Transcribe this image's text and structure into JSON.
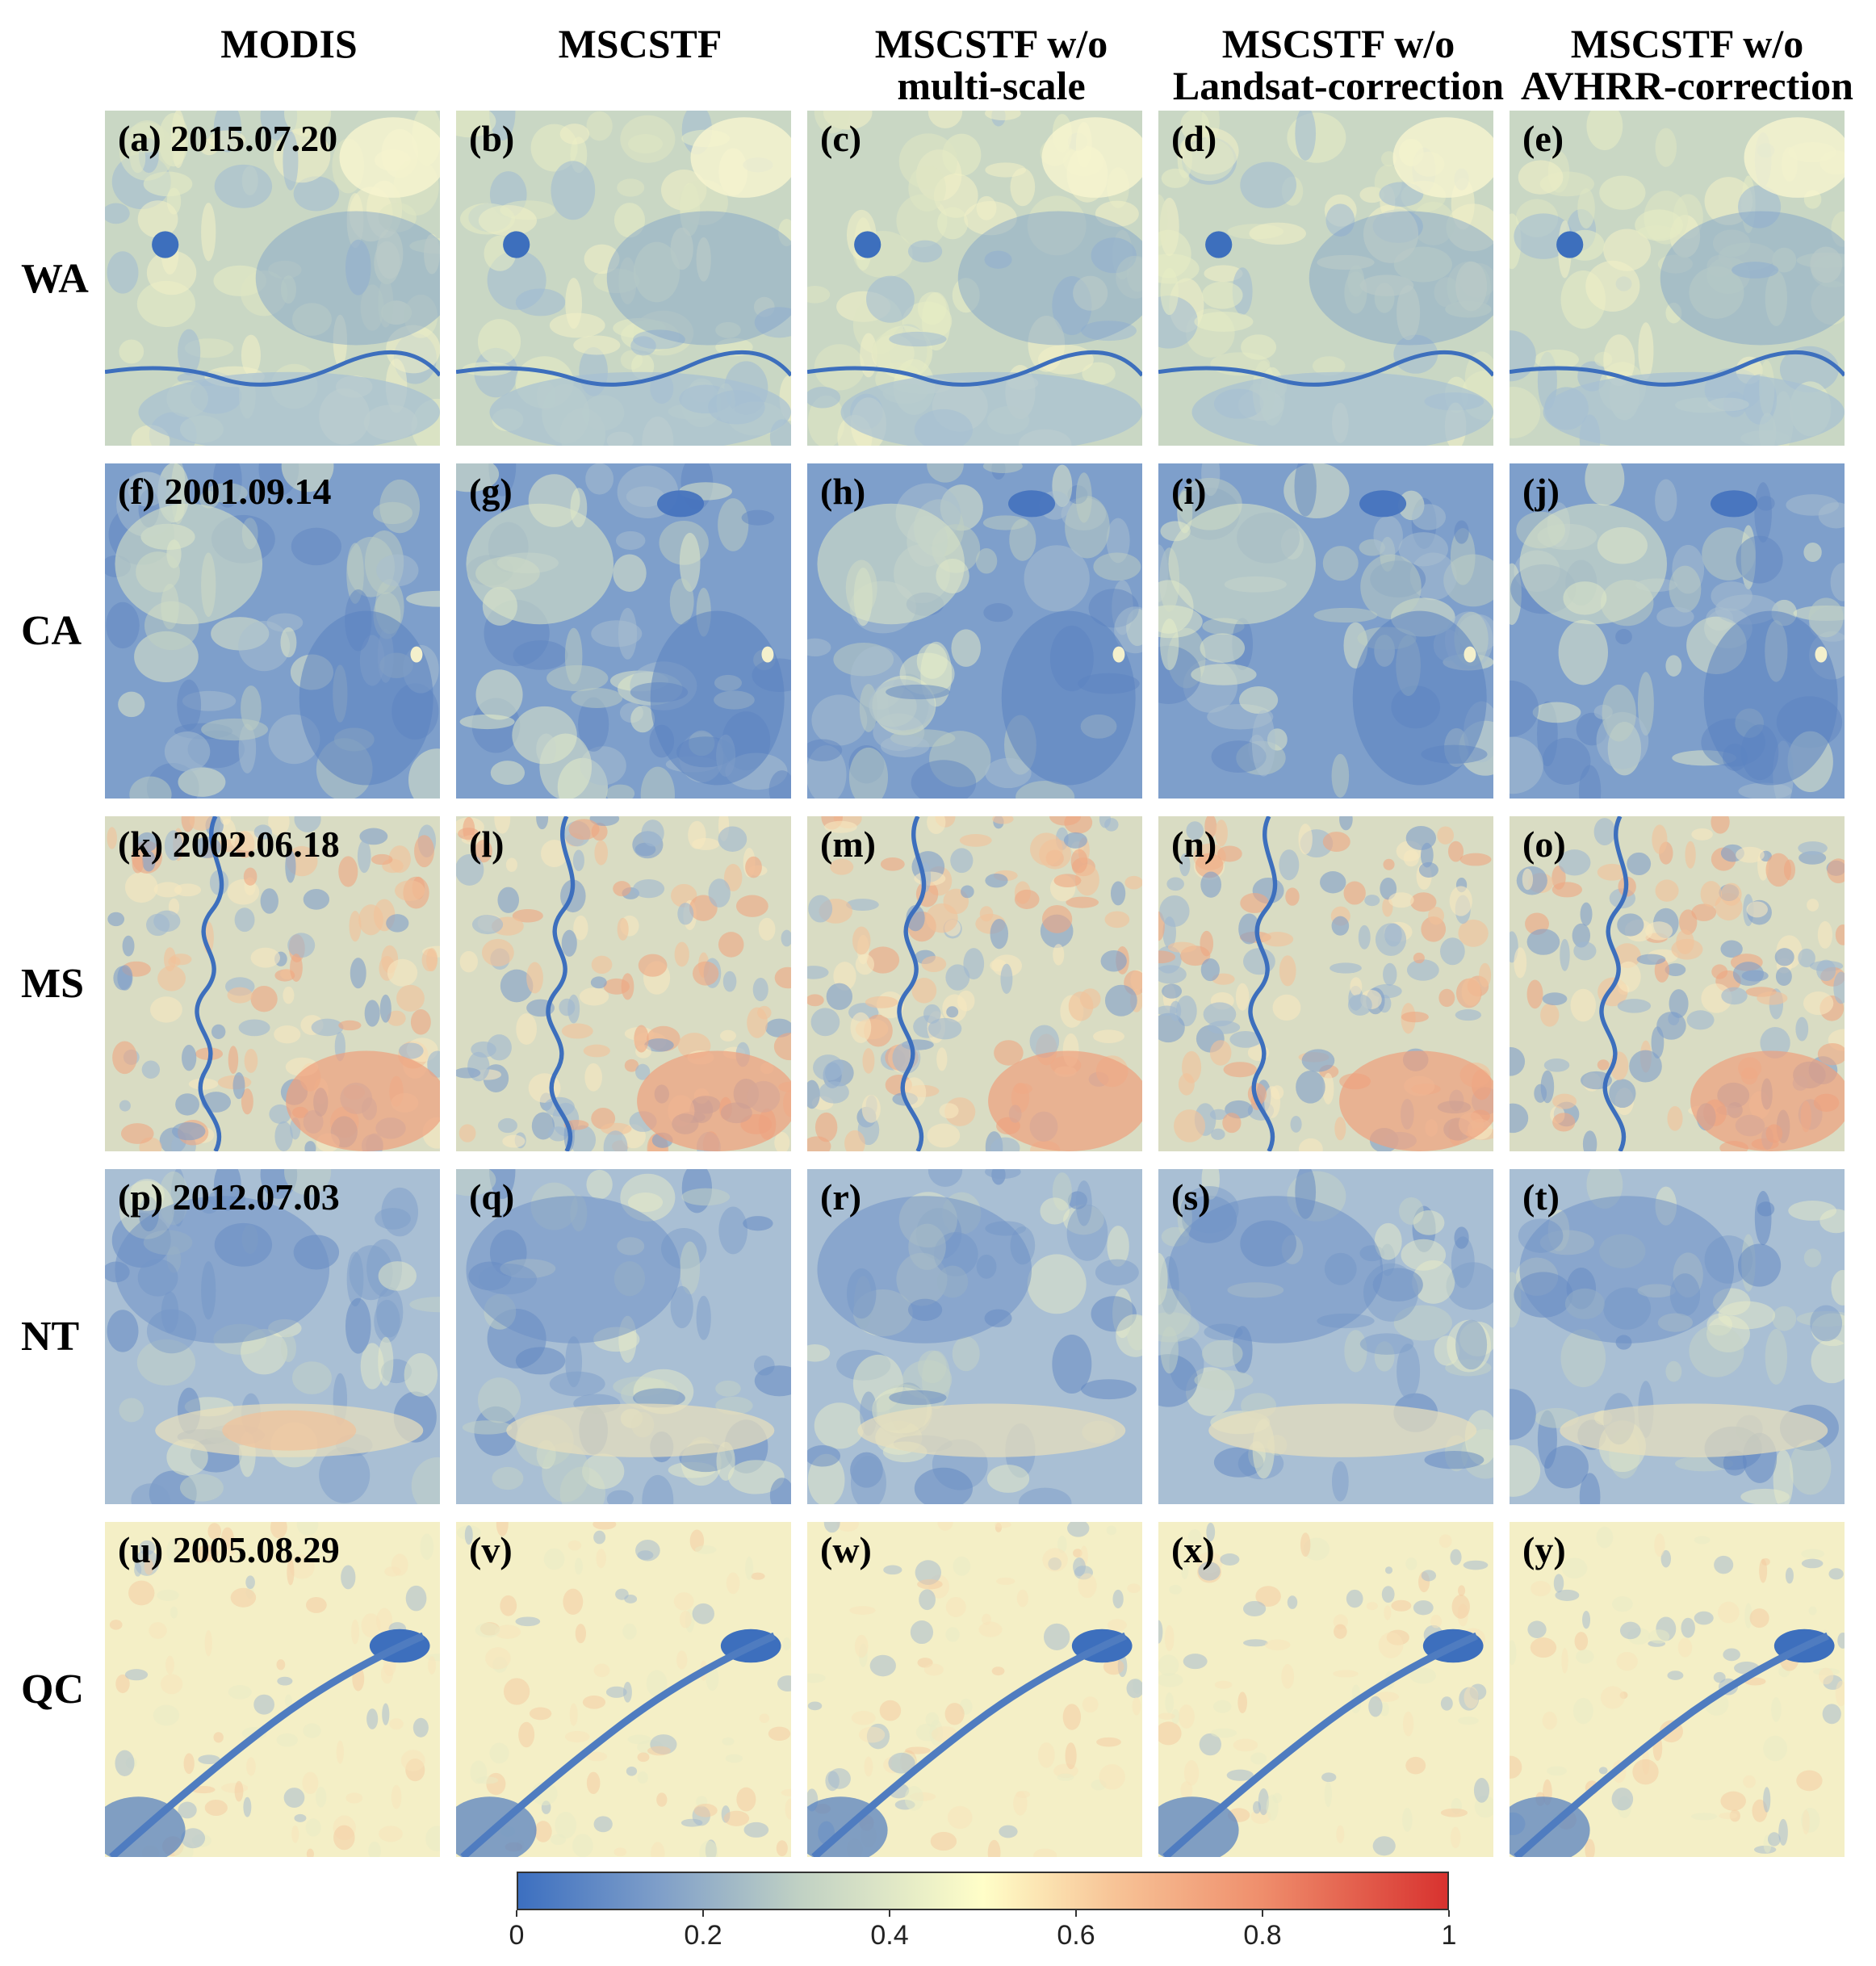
{
  "columns": [
    {
      "line1": "MODIS",
      "line2": ""
    },
    {
      "line1": "MSCSTF",
      "line2": ""
    },
    {
      "line1": "MSCSTF w/o",
      "line2": "multi-scale"
    },
    {
      "line1": "MSCSTF w/o",
      "line2": "Landsat-correction"
    },
    {
      "line1": "MSCSTF w/o",
      "line2": "AVHRR-correction"
    }
  ],
  "rows": [
    {
      "label": "WA",
      "scene": "wa",
      "panels": [
        "(a) 2015.07.20",
        "(b)",
        "(c)",
        "(d)",
        "(e)"
      ]
    },
    {
      "label": "CA",
      "scene": "ca",
      "panels": [
        "(f) 2001.09.14",
        "(g)",
        "(h)",
        "(i)",
        "(j)"
      ]
    },
    {
      "label": "MS",
      "scene": "ms",
      "panels": [
        "(k) 2002.06.18",
        "(l)",
        "(m)",
        "(n)",
        "(o)"
      ]
    },
    {
      "label": "NT",
      "scene": "nt",
      "panels": [
        "(p) 2012.07.03",
        "(q)",
        "(r)",
        "(s)",
        "(t)"
      ]
    },
    {
      "label": "QC",
      "scene": "qc",
      "panels": [
        "(u) 2005.08.29",
        "(v)",
        "(w)",
        "(x)",
        "(y)"
      ]
    }
  ],
  "colorbar": {
    "ticks": [
      "0",
      "0.2",
      "0.4",
      "0.6",
      "0.8",
      "1"
    ],
    "range": [
      0,
      1
    ],
    "colors": [
      "#3c6fc0",
      "#7e9ec9",
      "#bfd0c4",
      "#fffec8",
      "#f7c497",
      "#ef8e6c",
      "#d8322f"
    ]
  }
}
